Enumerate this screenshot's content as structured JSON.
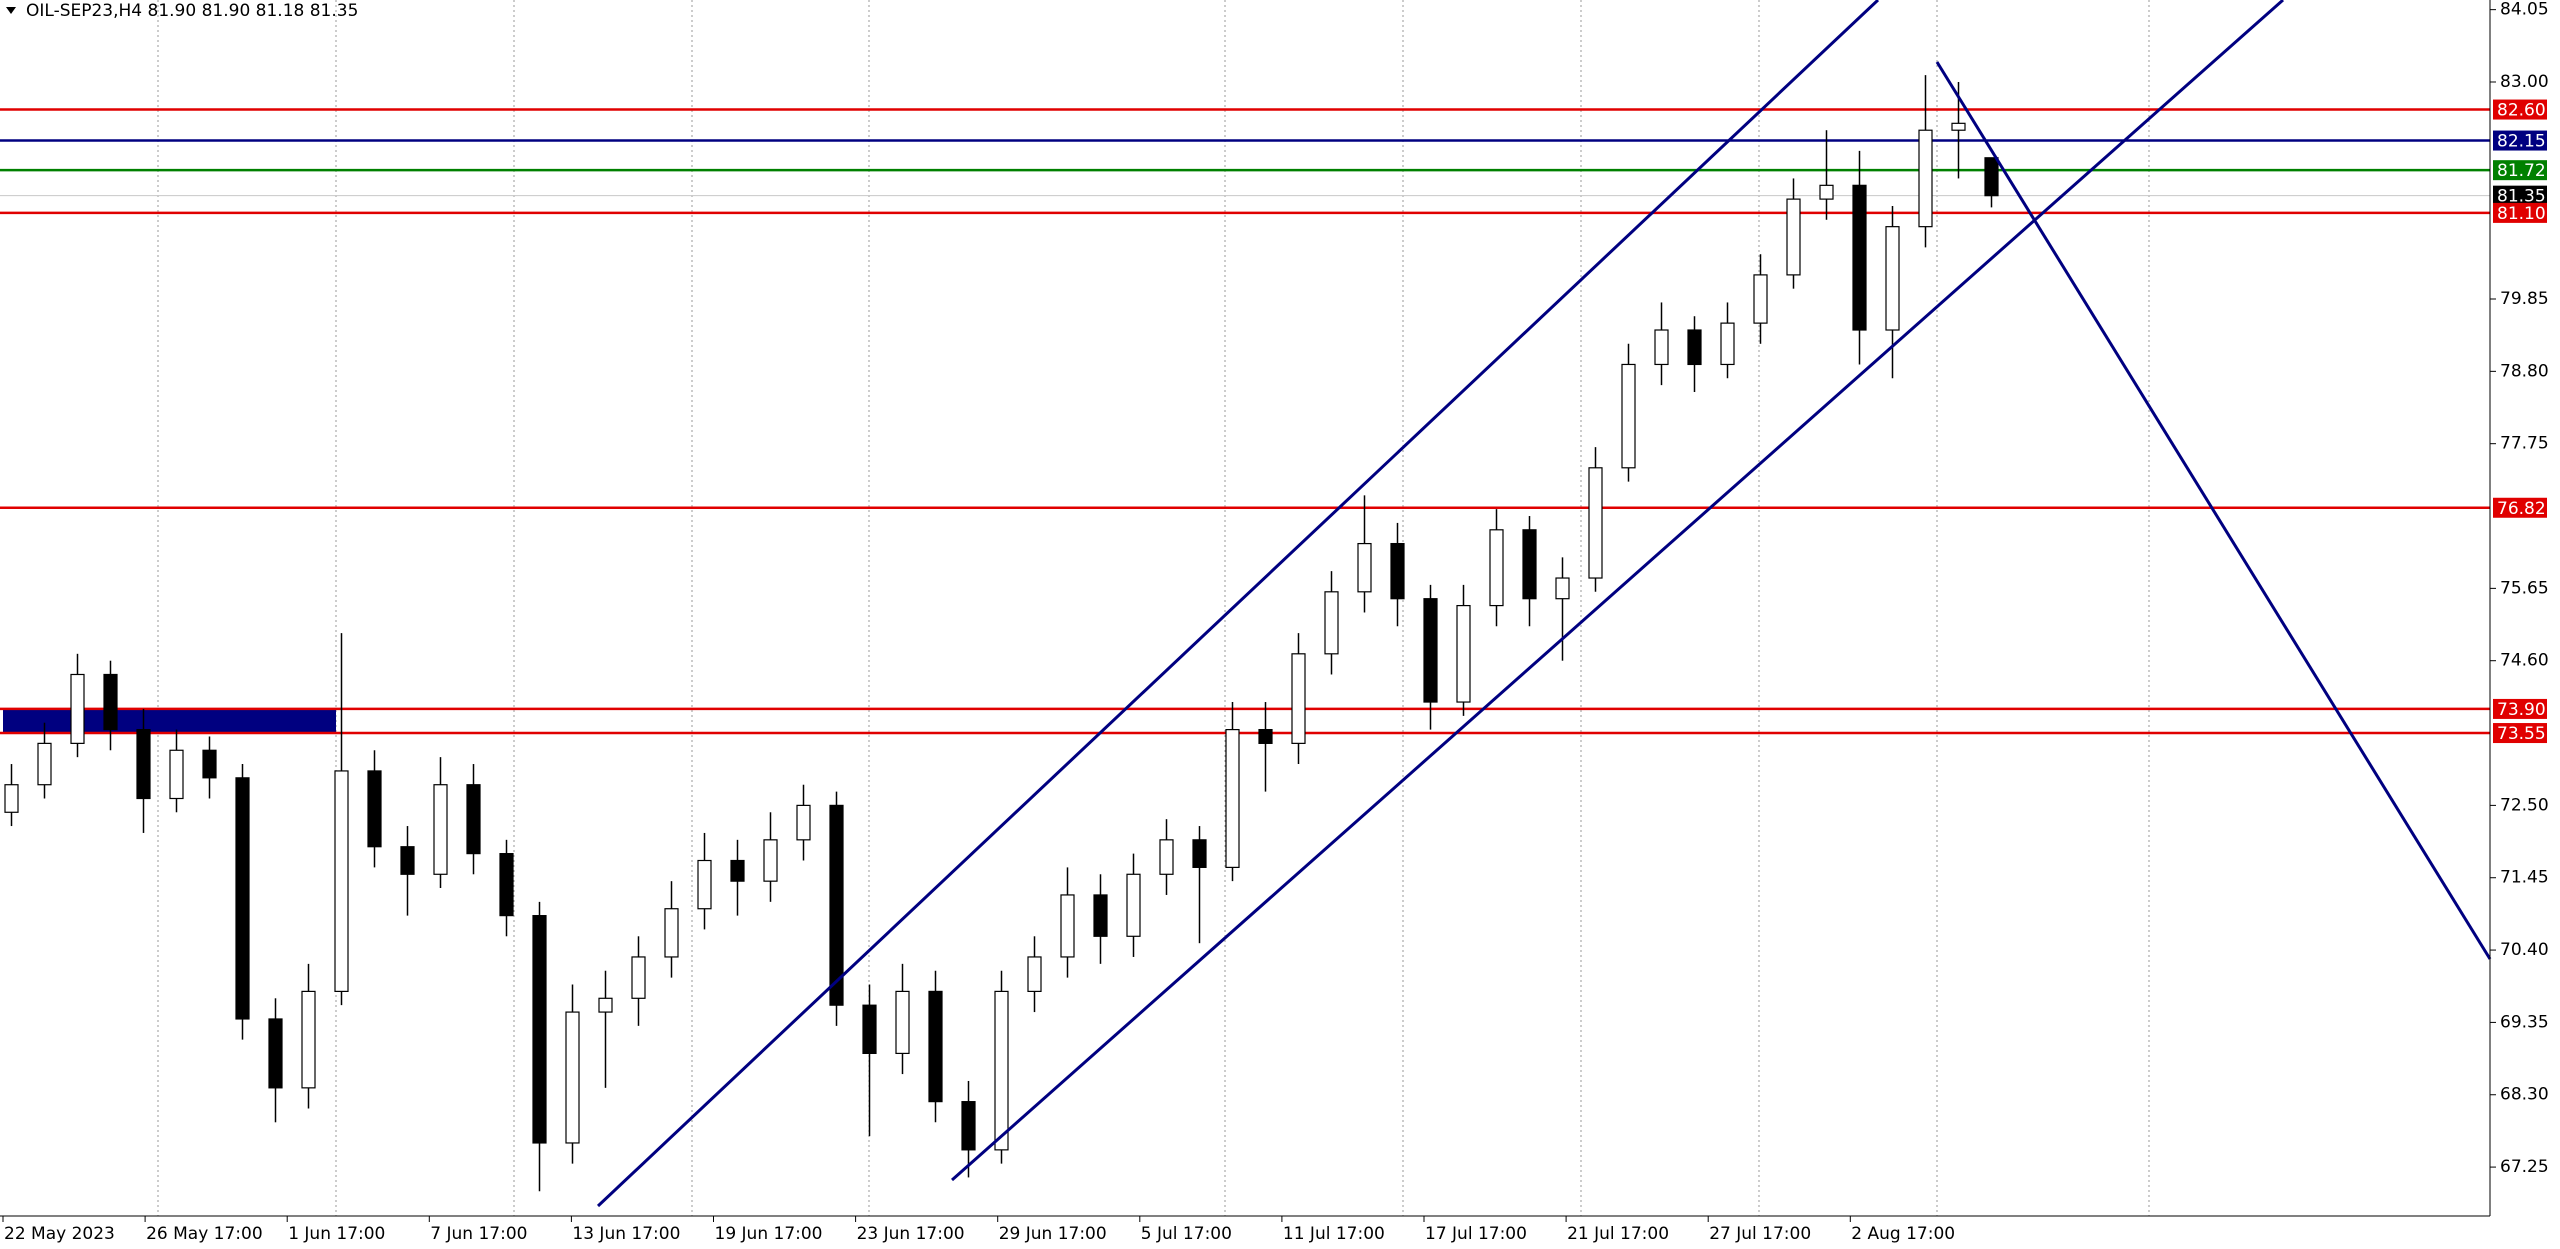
{
  "chart_data": {
    "type": "candlestick",
    "title": "OIL-SEP23,H4  81.90 81.90 81.18 81.35",
    "ylim": [
      66.54,
      84.19
    ],
    "yticks": [
      84.05,
      {
        "value": 83,
        "label": "83.00"
      },
      79.85,
      {
        "value": 78.8,
        "label": "78.80"
      },
      77.75,
      75.65,
      {
        "value": 74.6,
        "label": "74.60"
      },
      {
        "value": 72.5,
        "label": "72.50"
      },
      71.45,
      {
        "value": 70.4,
        "label": "70.40"
      },
      69.35,
      {
        "value": 68.3,
        "label": "68.30"
      },
      67.25
    ],
    "x_labels": [
      "22 May 2023",
      "26 May 17:00",
      "1 Jun 17:00",
      "7 Jun 17:00",
      "13 Jun 17:00",
      "19 Jun 17:00",
      "23 Jun 17:00",
      "29 Jun 17:00",
      "5 Jul 17:00",
      "11 Jul 17:00",
      "17 Jul 17:00",
      "21 Jul 17:00",
      "27 Jul 17:00",
      "2 Aug 17:00"
    ],
    "levels": [
      {
        "value": 82.6,
        "label": "82.60",
        "color": "#e00000"
      },
      {
        "value": 82.15,
        "color": "#000080"
      },
      {
        "value": 81.72,
        "color": "#008000"
      },
      {
        "value": 81.35,
        "color": "#000000"
      },
      {
        "value": 81.1,
        "label": "81.10",
        "color": "#e00000"
      },
      {
        "value": 76.82,
        "color": "#e00000"
      },
      {
        "value": 73.9,
        "label": "73.90",
        "color": "#e00000"
      },
      {
        "value": 73.55,
        "color": "#e00000"
      }
    ],
    "candles": {
      "open": [
        72.4,
        72.8,
        73.4,
        74.4,
        73.6,
        72.6,
        73.3,
        72.9,
        69.4,
        68.4,
        69.8,
        73.0,
        71.9,
        71.5,
        72.8,
        71.8,
        70.9,
        67.6,
        69.5,
        69.7,
        70.3,
        71.0,
        71.7,
        71.4,
        72.0,
        72.5,
        69.6,
        68.9,
        69.8,
        68.2,
        67.5,
        69.8,
        70.3,
        71.2,
        70.6,
        71.5,
        72.0,
        71.6,
        73.6,
        73.4,
        74.7,
        75.6,
        76.3,
        75.5,
        74.0,
        75.4,
        76.5,
        75.5,
        75.8,
        77.4,
        78.9,
        79.4,
        78.9,
        79.5,
        80.2,
        81.3,
        81.5,
        79.4,
        80.9,
        82.3,
        81.9
      ],
      "high": [
        73.1,
        73.7,
        74.7,
        74.6,
        73.9,
        73.6,
        73.5,
        73.1,
        69.7,
        70.2,
        75.0,
        73.3,
        72.2,
        73.2,
        73.1,
        72.0,
        71.1,
        69.9,
        70.1,
        70.6,
        71.4,
        72.1,
        72.0,
        72.4,
        72.8,
        72.7,
        69.9,
        70.2,
        70.1,
        68.5,
        70.1,
        70.6,
        71.6,
        71.5,
        71.8,
        72.3,
        72.2,
        74.0,
        74.0,
        75.0,
        75.9,
        77.0,
        76.6,
        75.7,
        75.7,
        76.8,
        76.7,
        76.1,
        77.7,
        79.2,
        79.8,
        79.6,
        79.8,
        80.5,
        81.6,
        82.3,
        82.0,
        81.2,
        83.1,
        83.0,
        81.9
      ],
      "low": [
        72.2,
        72.6,
        73.2,
        73.3,
        72.1,
        72.4,
        72.6,
        69.1,
        67.9,
        68.1,
        69.6,
        71.6,
        70.9,
        71.3,
        71.5,
        70.6,
        66.9,
        67.3,
        68.4,
        69.3,
        70.0,
        70.7,
        70.9,
        71.1,
        71.7,
        69.3,
        67.7,
        68.6,
        67.9,
        67.1,
        67.3,
        69.5,
        70.0,
        70.2,
        70.3,
        71.2,
        70.5,
        71.4,
        72.7,
        73.1,
        74.4,
        75.3,
        75.1,
        73.6,
        73.8,
        75.1,
        75.1,
        74.6,
        75.6,
        77.2,
        78.6,
        78.5,
        78.7,
        79.2,
        80.0,
        81.0,
        78.9,
        78.7,
        80.6,
        81.6,
        81.18
      ],
      "close": [
        72.8,
        73.4,
        74.4,
        73.6,
        72.6,
        73.3,
        72.9,
        69.4,
        68.4,
        69.8,
        73.0,
        71.9,
        71.5,
        72.8,
        71.8,
        70.9,
        67.6,
        69.5,
        69.7,
        70.3,
        71.0,
        71.7,
        71.4,
        72.0,
        72.5,
        69.6,
        68.9,
        69.8,
        68.2,
        67.5,
        69.8,
        70.3,
        71.2,
        70.6,
        71.5,
        72.0,
        71.6,
        73.6,
        73.4,
        74.7,
        75.6,
        76.3,
        75.5,
        74.0,
        75.4,
        76.5,
        75.5,
        75.8,
        77.4,
        78.9,
        79.4,
        78.9,
        79.5,
        80.2,
        81.3,
        81.5,
        79.4,
        80.9,
        82.3,
        82.4,
        81.35
      ]
    }
  }
}
